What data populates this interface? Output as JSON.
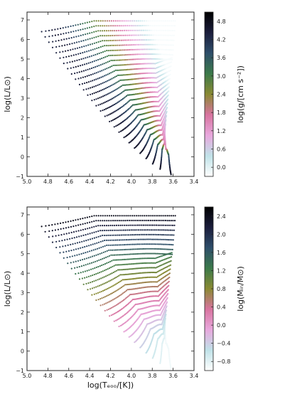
{
  "chart_data": [
    {
      "type": "scatter",
      "panel": "top",
      "xlabel": "",
      "ylabel": "log(L/L⊙)",
      "xlim": [
        5.0,
        3.4
      ],
      "ylim": [
        -1,
        7.4
      ],
      "xticks": [
        "5.0",
        "4.8",
        "4.6",
        "4.4",
        "4.2",
        "4.0",
        "3.8",
        "3.6",
        "3.4"
      ],
      "yticks": [
        "−1",
        "0",
        "1",
        "2",
        "3",
        "4",
        "5",
        "6",
        "7"
      ],
      "colorbar": {
        "label": "log(g/[cm s⁻²])",
        "ticks": [
          "0.0",
          "0.6",
          "1.2",
          "1.8",
          "2.4",
          "3.0",
          "3.6",
          "4.2",
          "4.8"
        ],
        "range": [
          -0.3,
          5.1
        ],
        "colormap": "cubehelix_r",
        "colors": [
          "#ffffff",
          "#c0e2e8",
          "#e8a8dd",
          "#d8749f",
          "#8a8a33",
          "#3c7a4a",
          "#2e4e6a",
          "#1b1d3c",
          "#000000"
        ]
      },
      "tracks": {
        "count": 28,
        "logL_zams_range": [
          -0.9,
          6.4
        ],
        "logT_zams_range": [
          3.62,
          4.86
        ],
        "logT_red_end": [
          3.58,
          3.68
        ]
      }
    },
    {
      "type": "scatter",
      "panel": "bottom",
      "xlabel": "log(Tₑₒₒ/[K])",
      "ylabel": "log(L/L⊙)",
      "xlim": [
        5.0,
        3.4
      ],
      "ylim": [
        -1,
        7.4
      ],
      "xticks": [
        "5.0",
        "4.8",
        "4.6",
        "4.4",
        "4.2",
        "4.0",
        "3.8",
        "3.6",
        "3.4"
      ],
      "yticks": [
        "−1",
        "0",
        "1",
        "2",
        "3",
        "4",
        "5",
        "6",
        "7"
      ],
      "colorbar": {
        "label": "log(Mᵢₙ/M⊙)",
        "ticks": [
          "−0.8",
          "−0.4",
          "0.0",
          "0.4",
          "0.8",
          "1.2",
          "1.6",
          "2.0",
          "2.4"
        ],
        "range": [
          -1.0,
          2.6
        ],
        "colormap": "cubehelix_r",
        "colors": [
          "#ffffff",
          "#c0e2e8",
          "#e8a8dd",
          "#d8749f",
          "#8a8a33",
          "#3c7a4a",
          "#2e4e6a",
          "#1b1d3c",
          "#000000"
        ]
      },
      "tracks": {
        "count": 28,
        "logL_zams_range": [
          -0.9,
          6.4
        ],
        "logT_zams_range": [
          3.62,
          4.86
        ],
        "logT_red_end": [
          3.58,
          3.68
        ]
      }
    }
  ]
}
